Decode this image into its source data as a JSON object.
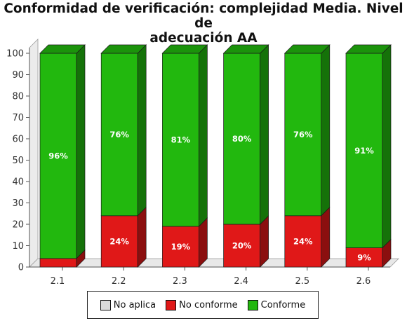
{
  "chart_data": {
    "type": "bar",
    "stacked": true,
    "title_lines": [
      "Conformidad de verificación: complejidad Media. Nivel de",
      "adecuación AA"
    ],
    "categories": [
      "2.1",
      "2.2",
      "2.3",
      "2.4",
      "2.5",
      "2.6"
    ],
    "ylim": [
      0,
      100
    ],
    "yticks": [
      "0",
      "10",
      "20",
      "30",
      "40",
      "50",
      "60",
      "70",
      "80",
      "90",
      "100"
    ],
    "series": [
      {
        "name": "No aplica",
        "color": "#d9d9d9",
        "values": [
          0,
          0,
          0,
          0,
          0,
          0
        ],
        "labels": [
          "",
          "",
          "",
          "",
          "",
          ""
        ]
      },
      {
        "name": "No conforme",
        "color": "#e01818",
        "values": [
          4,
          24,
          19,
          20,
          24,
          9
        ],
        "labels": [
          "",
          "24%",
          "19%",
          "20%",
          "24%",
          "9%"
        ]
      },
      {
        "name": "Conforme",
        "color": "#22b80e",
        "values": [
          96,
          76,
          81,
          80,
          76,
          91
        ],
        "labels": [
          "96%",
          "76%",
          "81%",
          "80%",
          "76%",
          "91%"
        ]
      }
    ],
    "grid": false,
    "legend_position": "bottom"
  }
}
